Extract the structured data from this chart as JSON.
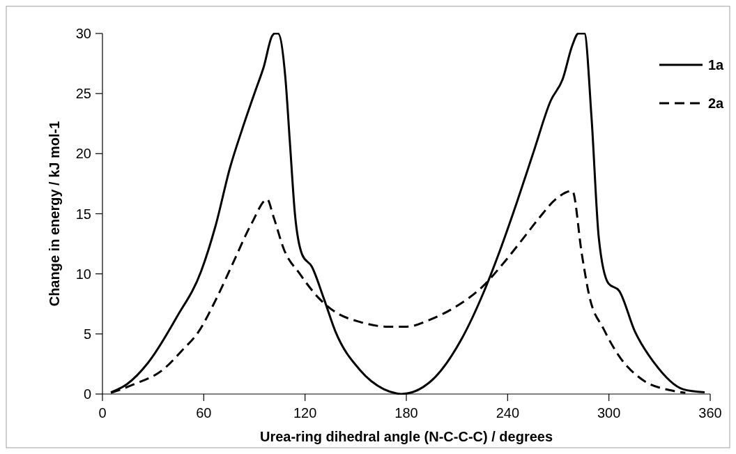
{
  "chart_data": {
    "type": "line",
    "xlabel": "Urea-ring dihedral angle (N-C-C-C) / degrees",
    "ylabel": "Change in energy / kJ mol-1",
    "xlim": [
      0,
      360
    ],
    "xticks": [
      0,
      60,
      120,
      180,
      240,
      300,
      360
    ],
    "ylim": [
      0,
      30
    ],
    "yticks": [
      0,
      5,
      10,
      15,
      20,
      25,
      30
    ],
    "grid": false,
    "legend": "top right",
    "marker": "none",
    "series": [
      {
        "name": "1a",
        "color": "#000000",
        "line_style": "solid",
        "x": [
          5,
          14.3,
          27,
          44,
          58.4,
          67,
          75.5,
          82.7,
          91,
          95.5,
          100.5,
          102,
          104,
          108.3,
          111,
          114,
          118.3,
          124,
          131,
          138,
          152.5,
          166.7,
          174,
          177,
          194,
          212.8,
          225.6,
          235.6,
          245.6,
          255.5,
          265.5,
          272.6,
          278.3,
          281.9,
          285.5,
          289.7,
          294,
          299.7,
          306,
          315.4,
          326.8,
          343.9,
          356.7
        ],
        "values": [
          0.14,
          0.8,
          2.6,
          6.4,
          10.2,
          14,
          18.8,
          22,
          25.4,
          27.2,
          29.8,
          30,
          30,
          26.4,
          21,
          15,
          11.6,
          10.6,
          8,
          5.2,
          2,
          0.4,
          0.06,
          0,
          1,
          4.6,
          8.4,
          12,
          16,
          20.2,
          24.4,
          26.2,
          29,
          30,
          30,
          23,
          13,
          9.2,
          8.6,
          5.2,
          2.6,
          0.4,
          0.14
        ]
      },
      {
        "name": "2a",
        "color": "#000000",
        "line_style": "dashed",
        "x": [
          5,
          18.5,
          35.6,
          47,
          57,
          67,
          77,
          88.4,
          97.6,
          101.2,
          107.6,
          116.9,
          128,
          138.2,
          152.5,
          169.6,
          180,
          194.3,
          208.5,
          225.6,
          237,
          248.4,
          258.4,
          268.4,
          278.3,
          284,
          288.3,
          296.9,
          306.8,
          319.7,
          336.8,
          345.3
        ],
        "values": [
          0.1,
          0.8,
          2,
          3.6,
          5.2,
          7.8,
          10.8,
          14.2,
          16.2,
          14.8,
          12,
          10,
          8,
          6.8,
          6,
          5.6,
          5.6,
          6.2,
          7.2,
          9,
          10.8,
          12.8,
          14.6,
          16.2,
          16.9,
          11.6,
          8.2,
          5.4,
          3,
          1.2,
          0.3,
          0.1
        ]
      }
    ]
  }
}
